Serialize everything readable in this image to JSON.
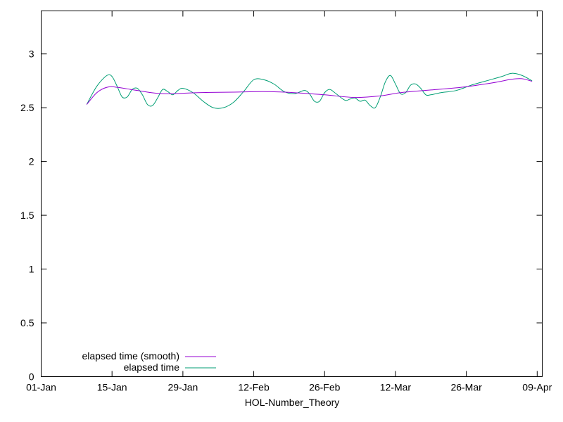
{
  "chart_data": {
    "type": "line",
    "title": "",
    "xlabel": "HOL-Number_Theory",
    "ylabel": "",
    "x_ticks": [
      "01-Jan",
      "15-Jan",
      "29-Jan",
      "12-Feb",
      "26-Feb",
      "12-Mar",
      "26-Mar",
      "09-Apr"
    ],
    "y_ticks": [
      "0",
      "0.5",
      "1",
      "1.5",
      "2",
      "2.5",
      "3"
    ],
    "xlim": [
      "2000-01-01",
      "2000-04-09"
    ],
    "ylim": [
      0,
      3.4
    ],
    "grid": false,
    "legend_position": "bottom-left",
    "series": [
      {
        "name": "elapsed time (smooth)",
        "color": "#9400d3",
        "points": [
          [
            "2000-01-10",
            2.53
          ],
          [
            "2000-01-12",
            2.64
          ],
          [
            "2000-01-14",
            2.69
          ],
          [
            "2000-01-16",
            2.69
          ],
          [
            "2000-01-20",
            2.66
          ],
          [
            "2000-01-25",
            2.63
          ],
          [
            "2000-02-01",
            2.64
          ],
          [
            "2000-02-08",
            2.645
          ],
          [
            "2000-02-14",
            2.65
          ],
          [
            "2000-02-20",
            2.64
          ],
          [
            "2000-02-26",
            2.62
          ],
          [
            "2000-03-03",
            2.595
          ],
          [
            "2000-03-08",
            2.61
          ],
          [
            "2000-03-12",
            2.64
          ],
          [
            "2000-03-18",
            2.665
          ],
          [
            "2000-03-24",
            2.69
          ],
          [
            "2000-03-30",
            2.73
          ],
          [
            "2000-04-03",
            2.765
          ],
          [
            "2000-04-05",
            2.77
          ],
          [
            "2000-04-07",
            2.745
          ]
        ]
      },
      {
        "name": "elapsed time",
        "color": "#009e73",
        "points": [
          [
            "2000-01-10",
            2.53
          ],
          [
            "2000-01-12",
            2.7
          ],
          [
            "2000-01-14",
            2.8
          ],
          [
            "2000-01-15",
            2.79
          ],
          [
            "2000-01-16",
            2.7
          ],
          [
            "2000-01-17",
            2.6
          ],
          [
            "2000-01-18",
            2.6
          ],
          [
            "2000-01-19",
            2.67
          ],
          [
            "2000-01-20",
            2.68
          ],
          [
            "2000-01-21",
            2.62
          ],
          [
            "2000-01-22",
            2.53
          ],
          [
            "2000-01-23",
            2.52
          ],
          [
            "2000-01-24",
            2.59
          ],
          [
            "2000-01-25",
            2.67
          ],
          [
            "2000-01-26",
            2.65
          ],
          [
            "2000-01-27",
            2.62
          ],
          [
            "2000-01-28",
            2.66
          ],
          [
            "2000-01-29",
            2.68
          ],
          [
            "2000-01-31",
            2.64
          ],
          [
            "2000-02-02",
            2.56
          ],
          [
            "2000-02-04",
            2.5
          ],
          [
            "2000-02-06",
            2.5
          ],
          [
            "2000-02-08",
            2.55
          ],
          [
            "2000-02-10",
            2.65
          ],
          [
            "2000-02-12",
            2.76
          ],
          [
            "2000-02-14",
            2.76
          ],
          [
            "2000-02-16",
            2.72
          ],
          [
            "2000-02-18",
            2.65
          ],
          [
            "2000-02-20",
            2.63
          ],
          [
            "2000-02-22",
            2.66
          ],
          [
            "2000-02-23",
            2.63
          ],
          [
            "2000-02-24",
            2.56
          ],
          [
            "2000-02-25",
            2.56
          ],
          [
            "2000-02-26",
            2.64
          ],
          [
            "2000-02-27",
            2.67
          ],
          [
            "2000-02-28",
            2.64
          ],
          [
            "2000-03-01",
            2.57
          ],
          [
            "2000-03-02",
            2.58
          ],
          [
            "2000-03-03",
            2.59
          ],
          [
            "2000-03-04",
            2.56
          ],
          [
            "2000-03-05",
            2.57
          ],
          [
            "2000-03-06",
            2.52
          ],
          [
            "2000-03-07",
            2.5
          ],
          [
            "2000-03-08",
            2.6
          ],
          [
            "2000-03-09",
            2.74
          ],
          [
            "2000-03-10",
            2.8
          ],
          [
            "2000-03-11",
            2.72
          ],
          [
            "2000-03-12",
            2.63
          ],
          [
            "2000-03-13",
            2.64
          ],
          [
            "2000-03-14",
            2.71
          ],
          [
            "2000-03-15",
            2.72
          ],
          [
            "2000-03-16",
            2.68
          ],
          [
            "2000-03-17",
            2.62
          ],
          [
            "2000-03-18",
            2.62
          ],
          [
            "2000-03-20",
            2.64
          ],
          [
            "2000-03-23",
            2.66
          ],
          [
            "2000-03-26",
            2.71
          ],
          [
            "2000-03-29",
            2.75
          ],
          [
            "2000-04-01",
            2.79
          ],
          [
            "2000-04-03",
            2.82
          ],
          [
            "2000-04-05",
            2.8
          ],
          [
            "2000-04-07",
            2.75
          ]
        ]
      }
    ]
  }
}
